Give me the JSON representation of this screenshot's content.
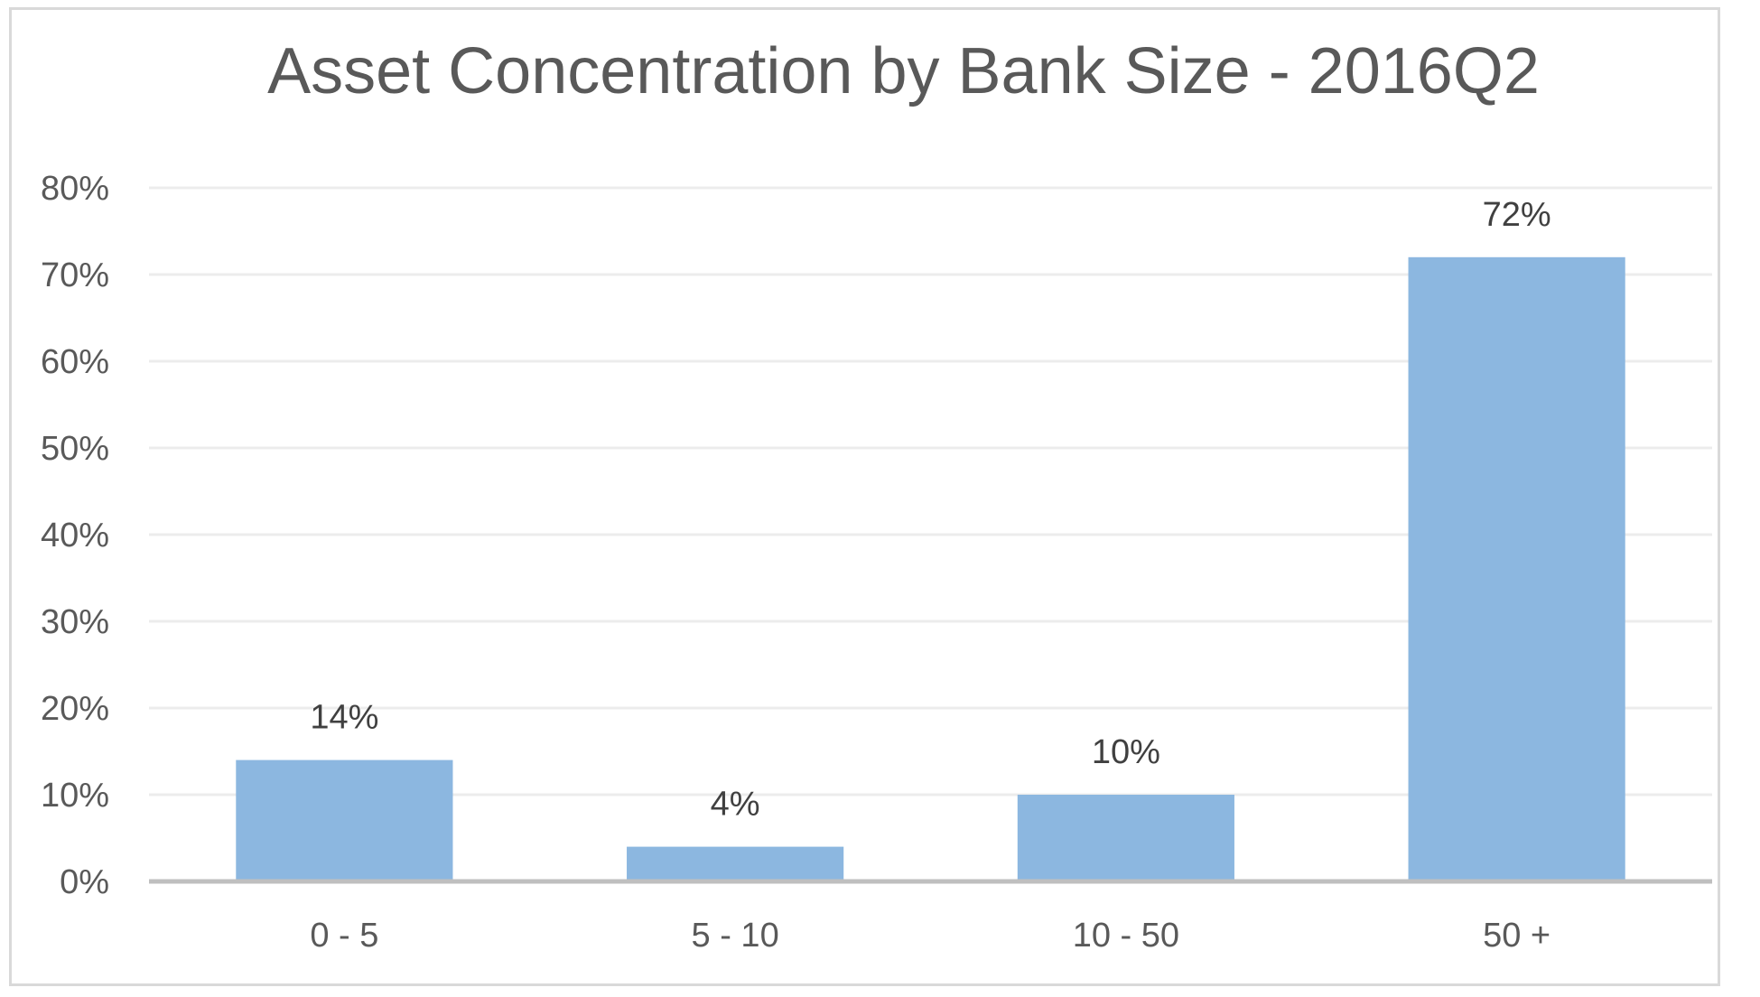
{
  "chart_data": {
    "type": "bar",
    "title": "Asset Concentration by Bank Size - 2016Q2",
    "categories": [
      "0 - 5",
      "5 - 10",
      "10 - 50",
      "50 +"
    ],
    "values": [
      14,
      4,
      10,
      72
    ],
    "data_labels": [
      "14%",
      "4%",
      "10%",
      "72%"
    ],
    "ylim": [
      0,
      80
    ],
    "yticks": [
      0,
      10,
      20,
      30,
      40,
      50,
      60,
      70,
      80
    ],
    "ytick_labels": [
      "0%",
      "10%",
      "20%",
      "30%",
      "40%",
      "50%",
      "60%",
      "70%",
      "80%"
    ],
    "xlabel": "",
    "ylabel": "",
    "grid": true,
    "legend": "none",
    "colors": {
      "bar": "#8cb7e0",
      "gridline": "#ececec",
      "axis": "#bfbfbf",
      "text": "#595959",
      "frame": "#d9d9d9"
    }
  }
}
